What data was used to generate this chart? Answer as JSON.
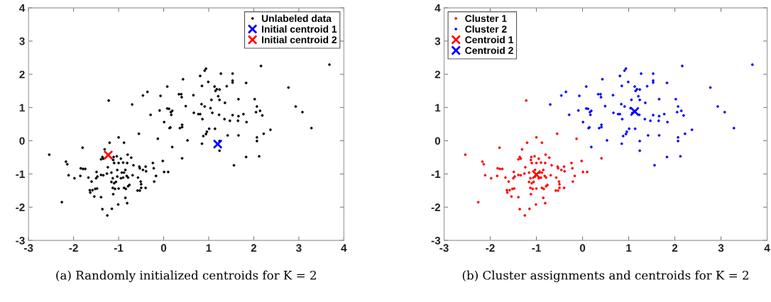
{
  "chart_data": [
    {
      "type": "scatter",
      "xlim": [
        -3,
        4
      ],
      "ylim": [
        -3,
        4
      ],
      "xticks": [
        -3,
        -2,
        -1,
        0,
        1,
        2,
        3,
        4
      ],
      "yticks": [
        -3,
        -2,
        -1,
        0,
        1,
        2,
        3,
        4
      ],
      "grid": false,
      "legend": "top right",
      "annotations": [
        "(a) Randomly initialized centroids for K = 2"
      ],
      "series": [
        {
          "name": "Unlabeled data",
          "color": "#000000",
          "marker": "circle",
          "x": [
            -1.31,
            -1.36,
            -1.34,
            -1.39,
            -1.24,
            -1.26,
            -1.11,
            -1.04,
            -1.12,
            -0.95,
            -1.1,
            -1.0,
            -0.9,
            -0.8,
            -0.72,
            -0.81,
            -2.17,
            -2.14,
            -1.84,
            -1.79,
            -1.74,
            -2.11,
            -1.98,
            -1.85,
            -1.67,
            -1.6,
            -1.49,
            -1.47,
            -1.5,
            -1.39,
            -1.34,
            -1.63,
            -1.64,
            -1.58,
            -1.54,
            -1.52,
            -1.48,
            -1.39,
            -2.26,
            -1.36,
            -1.25,
            -1.15,
            -1.01,
            -0.81,
            -0.85,
            -1.12,
            -1.13,
            -1.08,
            -1.0,
            -0.88,
            -0.84,
            -1.16,
            -1.1,
            -1.06,
            -1.13,
            -1.03,
            -0.95,
            -0.9,
            -0.88,
            -0.93,
            -0.85,
            -0.82,
            -0.79,
            -0.76,
            -0.79,
            -0.69,
            -0.67,
            -1.03,
            -1.16,
            -0.54,
            -0.53,
            -0.57,
            -0.51,
            -0.5,
            -0.58,
            -0.53,
            -0.5,
            -0.4,
            -0.39,
            -0.46,
            -0.4,
            -0.24,
            -0.22,
            -0.21,
            -0.17,
            -0.02,
            0.01,
            0.1,
            -1.22,
            -0.55,
            -1.0,
            -0.13,
            -1.2,
            -0.88,
            -1.8,
            -2.54,
            0.41,
            3.68,
            2.16,
            0.94,
            0.91,
            1.27,
            1.53,
            0.81,
            0.43,
            1.53,
            1.53,
            0.99,
            1.83,
            0.85,
            1.13,
            1.18,
            1.24,
            1.15,
            1.4,
            0.08,
            2.77,
            -0.36,
            -0.46,
            0.34,
            0.39,
            0.4,
            0.66,
            -0.07,
            1.21,
            1.06,
            1.24,
            2.02,
            1.66,
            1.36,
            -0.7,
            0.84,
            0.49,
            0.91,
            2.07,
            1.04,
            0.08,
            0.12,
            2.93,
            -0.09,
            2.14,
            2.05,
            0.19,
            0.16,
            3.08,
            0.67,
            0.77,
            0.81,
            1.08,
            -0.29,
            0.17,
            1.23,
            1.53,
            1.66,
            1.77,
            2.19,
            0.86,
            1.35,
            1.47,
            1.65,
            1.84,
            0.01,
            0.41,
            0.41,
            0.15,
            0.13,
            0.36,
            3.28,
            2.37,
            1.01,
            1.14,
            0.96,
            0.94,
            0.88,
            1.42,
            1.66,
            2.22,
            2.07,
            2.07,
            0.53,
            1.24,
            0.85,
            0.19,
            1.24,
            1.83,
            2.12,
            1.56
          ],
          "values": [
            -0.26,
            -0.49,
            -0.54,
            -0.56,
            -0.8,
            -0.99,
            -0.49,
            -0.47,
            -0.58,
            -0.54,
            -0.67,
            -0.67,
            -0.66,
            -0.42,
            -0.51,
            -0.67,
            -0.63,
            -0.71,
            -0.83,
            -0.85,
            -0.85,
            -1.04,
            -1.13,
            -1.06,
            -1.11,
            -1.23,
            -0.94,
            -1.08,
            -1.13,
            -1.03,
            -1.04,
            -1.56,
            -1.49,
            -1.49,
            -1.68,
            -1.45,
            -1.44,
            -1.7,
            -1.85,
            -2.06,
            -2.25,
            -2.05,
            -1.92,
            -1.88,
            -1.72,
            -1.61,
            -1.42,
            -1.45,
            -1.44,
            -1.42,
            -1.45,
            -1.24,
            -1.28,
            -1.24,
            -1.13,
            -1.08,
            -1.13,
            -1.11,
            -0.96,
            -0.96,
            -0.88,
            -1.06,
            -1.11,
            -1.33,
            -1.37,
            -1.04,
            -0.74,
            -0.88,
            -0.96,
            -0.78,
            -0.83,
            -1.11,
            -1.23,
            -1.31,
            -1.5,
            -1.5,
            -1.42,
            -0.78,
            -0.92,
            -0.88,
            -1.42,
            -0.67,
            -0.83,
            -1.23,
            -1.06,
            -0.61,
            -0.94,
            -0.94,
            1.21,
            0.21,
            0.1,
            0.06,
            -0.06,
            -0.06,
            -0.21,
            -0.42,
            -0.53,
            2.29,
            2.25,
            2.17,
            2.11,
            2.02,
            2.02,
            1.95,
            1.85,
            1.81,
            1.75,
            1.77,
            1.74,
            1.65,
            1.63,
            1.55,
            1.54,
            1.5,
            1.64,
            1.63,
            1.6,
            1.47,
            1.36,
            1.4,
            1.4,
            1.31,
            1.37,
            1.35,
            1.34,
            1.23,
            1.23,
            1.25,
            1.25,
            1.14,
            1.09,
            1.1,
            1.04,
            1.03,
            1.03,
            0.98,
            0.97,
            0.96,
            1.03,
            0.91,
            0.9,
            0.86,
            0.9,
            0.86,
            0.86,
            0.84,
            0.8,
            0.8,
            0.84,
            0.78,
            0.78,
            0.78,
            0.77,
            0.74,
            0.8,
            0.76,
            0.65,
            0.65,
            0.6,
            0.6,
            0.56,
            0.56,
            0.48,
            0.41,
            0.4,
            0.38,
            0.38,
            0.38,
            0.33,
            0.36,
            0.36,
            0.27,
            0.2,
            0.14,
            0.16,
            0.16,
            0.21,
            0.1,
            -0.01,
            0.01,
            -0.01,
            -0.09,
            -0.19,
            -0.3,
            -0.49,
            -0.47,
            -0.74
          ]
        },
        {
          "name": "Initial centroid 1",
          "color": "#0000ff",
          "marker": "cross",
          "x": [
            1.2
          ],
          "values": [
            -0.1
          ]
        },
        {
          "name": "Initial centroid 2",
          "color": "#ff0000",
          "marker": "cross",
          "x": [
            -1.23
          ],
          "values": [
            -0.43
          ]
        }
      ]
    },
    {
      "type": "scatter",
      "xlim": [
        -3,
        4
      ],
      "ylim": [
        -3,
        4
      ],
      "xticks": [
        -3,
        -2,
        -1,
        0,
        1,
        2,
        3,
        4
      ],
      "yticks": [
        -3,
        -2,
        -1,
        0,
        1,
        2,
        3,
        4
      ],
      "grid": false,
      "legend": "top left",
      "annotations": [
        "(b) Cluster assignments and centroids for K = 2"
      ],
      "series": [
        {
          "name": "Cluster 1",
          "color": "#ff0000",
          "marker": "circle",
          "x": [
            -1.31,
            -1.36,
            -1.34,
            -1.39,
            -1.24,
            -1.26,
            -1.11,
            -1.04,
            -1.12,
            -0.95,
            -1.1,
            -1.0,
            -0.9,
            -0.8,
            -0.72,
            -0.81,
            -2.17,
            -2.14,
            -1.84,
            -1.79,
            -1.74,
            -2.11,
            -1.98,
            -1.85,
            -1.67,
            -1.6,
            -1.49,
            -1.47,
            -1.5,
            -1.39,
            -1.34,
            -1.63,
            -1.64,
            -1.58,
            -1.54,
            -1.52,
            -1.48,
            -1.39,
            -2.26,
            -1.36,
            -1.25,
            -1.15,
            -1.01,
            -0.81,
            -0.85,
            -1.12,
            -1.13,
            -1.08,
            -1.0,
            -0.88,
            -0.84,
            -1.16,
            -1.1,
            -1.06,
            -1.13,
            -1.03,
            -0.95,
            -0.9,
            -0.88,
            -0.93,
            -0.85,
            -0.82,
            -0.79,
            -0.76,
            -0.79,
            -0.69,
            -0.67,
            -1.03,
            -1.16,
            -0.54,
            -0.53,
            -0.57,
            -0.51,
            -0.5,
            -0.58,
            -0.53,
            -0.5,
            -0.4,
            -0.39,
            -0.46,
            -0.4,
            -0.24,
            -0.22,
            -0.21,
            -0.17,
            -0.02,
            0.01,
            0.1,
            -1.22,
            -0.55,
            -1.0,
            -0.13,
            -1.2,
            -0.88,
            -1.8,
            -2.54,
            0.41
          ],
          "values": [
            -0.26,
            -0.49,
            -0.54,
            -0.56,
            -0.8,
            -0.99,
            -0.49,
            -0.47,
            -0.58,
            -0.54,
            -0.67,
            -0.67,
            -0.66,
            -0.42,
            -0.51,
            -0.67,
            -0.63,
            -0.71,
            -0.83,
            -0.85,
            -0.85,
            -1.04,
            -1.13,
            -1.06,
            -1.11,
            -1.23,
            -0.94,
            -1.08,
            -1.13,
            -1.03,
            -1.04,
            -1.56,
            -1.49,
            -1.49,
            -1.68,
            -1.45,
            -1.44,
            -1.7,
            -1.85,
            -2.06,
            -2.25,
            -2.05,
            -1.92,
            -1.88,
            -1.72,
            -1.61,
            -1.42,
            -1.45,
            -1.44,
            -1.42,
            -1.45,
            -1.24,
            -1.28,
            -1.24,
            -1.13,
            -1.08,
            -1.13,
            -1.11,
            -0.96,
            -0.96,
            -0.88,
            -1.06,
            -1.11,
            -1.33,
            -1.37,
            -1.04,
            -0.74,
            -0.88,
            -0.96,
            -0.78,
            -0.83,
            -1.11,
            -1.23,
            -1.31,
            -1.5,
            -1.5,
            -1.42,
            -0.78,
            -0.92,
            -0.88,
            -1.42,
            -0.67,
            -0.83,
            -1.23,
            -1.06,
            -0.61,
            -0.94,
            -0.94,
            1.21,
            0.21,
            0.1,
            0.06,
            -0.06,
            -0.06,
            -0.21,
            -0.42,
            -0.53
          ]
        },
        {
          "name": "Cluster 2",
          "color": "#0000ff",
          "marker": "circle",
          "x": [
            3.68,
            2.16,
            0.94,
            0.91,
            1.27,
            1.53,
            0.81,
            0.43,
            1.53,
            1.53,
            0.99,
            1.83,
            0.85,
            1.13,
            1.18,
            1.24,
            1.15,
            1.4,
            0.08,
            2.77,
            -0.36,
            -0.46,
            0.34,
            0.39,
            0.4,
            0.66,
            -0.07,
            1.21,
            1.06,
            1.24,
            2.02,
            1.66,
            1.36,
            -0.7,
            0.84,
            0.49,
            0.91,
            2.07,
            1.04,
            0.08,
            0.12,
            2.93,
            -0.09,
            2.14,
            2.05,
            0.19,
            0.16,
            3.08,
            0.67,
            0.77,
            0.81,
            1.08,
            -0.29,
            0.17,
            1.23,
            1.53,
            1.66,
            1.77,
            2.19,
            0.86,
            1.35,
            1.47,
            1.65,
            1.84,
            0.01,
            0.41,
            0.41,
            0.15,
            0.13,
            0.36,
            3.28,
            2.37,
            1.01,
            1.14,
            0.96,
            0.94,
            0.88,
            1.42,
            1.66,
            2.22,
            2.07,
            2.07,
            0.53,
            1.24,
            0.85,
            0.19,
            1.24,
            1.83,
            2.12,
            1.56
          ],
          "values": [
            2.29,
            2.25,
            2.17,
            2.11,
            2.02,
            2.02,
            1.95,
            1.85,
            1.81,
            1.75,
            1.77,
            1.74,
            1.65,
            1.63,
            1.55,
            1.54,
            1.5,
            1.64,
            1.63,
            1.6,
            1.47,
            1.36,
            1.4,
            1.4,
            1.31,
            1.37,
            1.35,
            1.34,
            1.23,
            1.23,
            1.25,
            1.25,
            1.14,
            1.09,
            1.1,
            1.04,
            1.03,
            1.03,
            0.98,
            0.97,
            0.96,
            1.03,
            0.91,
            0.9,
            0.86,
            0.9,
            0.86,
            0.86,
            0.84,
            0.8,
            0.8,
            0.84,
            0.78,
            0.78,
            0.78,
            0.77,
            0.74,
            0.8,
            0.76,
            0.65,
            0.65,
            0.6,
            0.6,
            0.56,
            0.56,
            0.48,
            0.41,
            0.4,
            0.38,
            0.38,
            0.38,
            0.33,
            0.36,
            0.36,
            0.27,
            0.2,
            0.14,
            0.16,
            0.16,
            0.21,
            0.1,
            -0.01,
            0.01,
            -0.01,
            -0.09,
            -0.19,
            -0.3,
            -0.49,
            -0.47,
            -0.74
          ]
        },
        {
          "name": "Centroid 1",
          "color": "#ff0000",
          "marker": "cross",
          "x": [
            -1.0
          ],
          "values": [
            -1.02
          ]
        },
        {
          "name": "Centroid 2",
          "color": "#0000ff",
          "marker": "cross",
          "x": [
            1.13
          ],
          "values": [
            0.88
          ]
        }
      ]
    }
  ]
}
